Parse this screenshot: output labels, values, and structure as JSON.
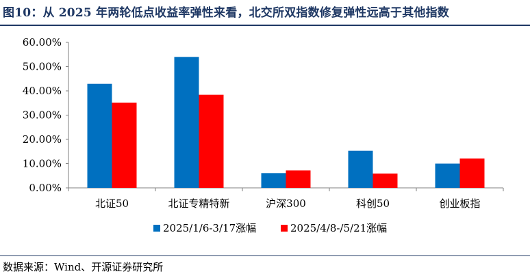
{
  "title": "图10：从 2025 年两轮低点收益率弹性来看，北交所双指数修复弹性远高于其他指数",
  "source": "数据来源：Wind、开源证券研究所",
  "chart_data": {
    "type": "bar",
    "categories": [
      "北证50",
      "北证专精特新",
      "沪深300",
      "科创50",
      "创业板指"
    ],
    "series": [
      {
        "name": "2025/1/6-3/17涨幅",
        "color": "#0070c0",
        "values": [
          42.9,
          54.0,
          6.1,
          15.3,
          10.0
        ]
      },
      {
        "name": "2025/4/8-/5/21涨幅",
        "color": "#ff0000",
        "values": [
          35.1,
          38.4,
          7.2,
          5.9,
          12.1
        ]
      }
    ],
    "y_ticks": [
      "0.00%",
      "10.00%",
      "20.00%",
      "30.00%",
      "40.00%",
      "50.00%",
      "60.00%"
    ],
    "ylim": [
      0,
      60
    ],
    "grid": false,
    "legend_position": "bottom"
  }
}
